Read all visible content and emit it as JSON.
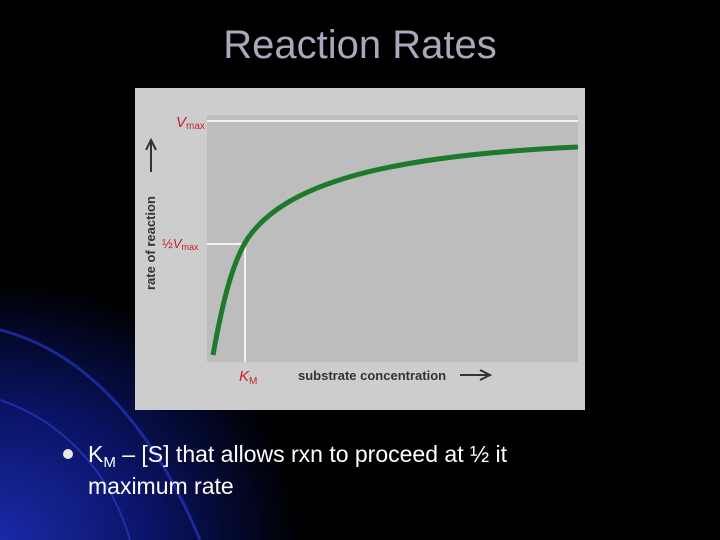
{
  "title": "Reaction Rates",
  "figure": {
    "vmax": {
      "symbol": "V",
      "sub": "max"
    },
    "half_vmax": {
      "prefix": "½",
      "symbol": "V",
      "sub": "max"
    },
    "y_axis_label": "rate of reaction",
    "km": {
      "symbol": "K",
      "sub": "M"
    },
    "x_axis_label": "substrate concentration"
  },
  "bullet": {
    "symbol": "K",
    "sub": "M",
    "lines": [
      " – [S] that allows rxn to proceed at ½ it",
      "maximum rate"
    ]
  }
}
